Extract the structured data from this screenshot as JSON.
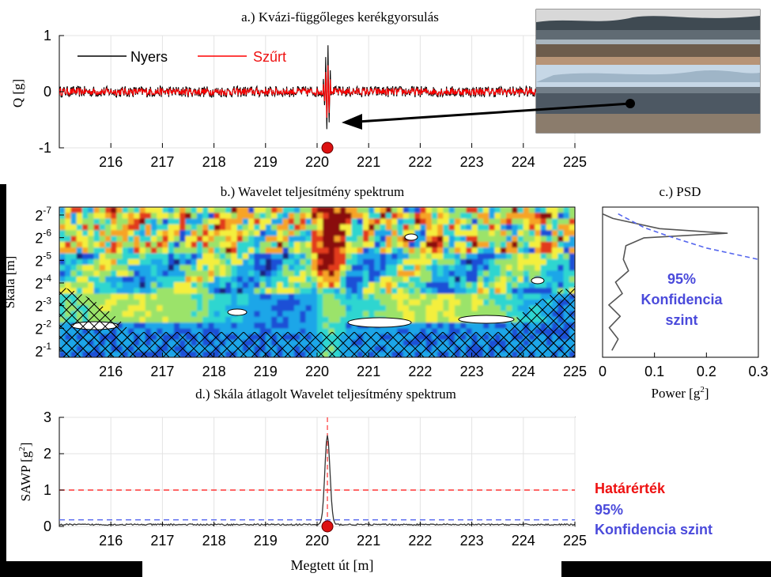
{
  "colors": {
    "raw": "#000000",
    "filtered": "#ff0000",
    "marker": "#dd1111",
    "threshold": "#ff3333",
    "confidence": "#5566ee",
    "confidence_text": "#4a4adb",
    "threshold_text": "#ee1111",
    "psd_line": "#555555"
  },
  "chart_data": [
    {
      "id": "a",
      "type": "line",
      "title": "a.) Kvázi-függőleges kerékgyorsulás",
      "ylabel": "Q [g]",
      "xlabel": "",
      "xlim": [
        215,
        225
      ],
      "ylim": [
        -1,
        1
      ],
      "x_ticks": [
        216,
        217,
        218,
        219,
        220,
        221,
        222,
        223,
        224,
        225
      ],
      "y_ticks": [
        1,
        0,
        -1
      ],
      "grid": true,
      "legend": {
        "position": "top-left",
        "entries": [
          "Nyers",
          "Szűrt"
        ]
      },
      "series": [
        {
          "name": "Nyers",
          "note": "noise about ±0.1 g, impact peak",
          "peak_x": 220.2,
          "peak_max": 0.95,
          "peak_min": -0.72,
          "noise_amplitude": 0.1
        },
        {
          "name": "Szűrt",
          "peak_x": 220.2,
          "peak_max": 0.55,
          "peak_min": -0.5
        }
      ],
      "marker": {
        "x": 220.2,
        "y": -1
      }
    },
    {
      "id": "b",
      "type": "heatmap",
      "title": "b.) Wavelet teljesítmény spektrum",
      "ylabel": "Skála [m]",
      "xlim": [
        215,
        225
      ],
      "x_ticks": [
        216,
        217,
        218,
        219,
        220,
        221,
        222,
        223,
        224,
        225
      ],
      "y_ticks": [
        "2-7",
        "2-6",
        "2-5",
        "2-4",
        "2-3",
        "2-2",
        "2-1"
      ],
      "y_ticks_display": [
        {
          "base": "2",
          "exp": "-7"
        },
        {
          "base": "2",
          "exp": "-6"
        },
        {
          "base": "2",
          "exp": "-5"
        },
        {
          "base": "2",
          "exp": "-4"
        },
        {
          "base": "2",
          "exp": "-3"
        },
        {
          "base": "2",
          "exp": "-2"
        },
        {
          "base": "2",
          "exp": "-1"
        }
      ],
      "hotspot_x": 220.2
    },
    {
      "id": "c",
      "type": "line",
      "title": "c.) PSD",
      "xlabel_base": "Power [g",
      "xlabel_exp": "2",
      "xlabel_end": "]",
      "xlim": [
        0,
        0.3
      ],
      "x_ticks": [
        "0",
        "0.1",
        "0.2",
        "0.3"
      ],
      "series": [
        {
          "name": "PSD",
          "points": [
            [
              0.0,
              -7.0
            ],
            [
              0.02,
              -6.8
            ],
            [
              0.11,
              -6.35
            ],
            [
              0.24,
              -6.15
            ],
            [
              0.08,
              -5.95
            ],
            [
              0.045,
              -5.6
            ],
            [
              0.04,
              -5.0
            ],
            [
              0.05,
              -4.5
            ],
            [
              0.025,
              -4.0
            ],
            [
              0.038,
              -3.5
            ],
            [
              0.012,
              -3.0
            ],
            [
              0.034,
              -2.5
            ],
            [
              0.013,
              -2.0
            ],
            [
              0.03,
              -1.5
            ],
            [
              0.018,
              -1.0
            ]
          ]
        },
        {
          "name": "95% Konfidencia szint",
          "points": [
            [
              0.03,
              -7.0
            ],
            [
              0.08,
              -6.4
            ],
            [
              0.13,
              -6.0
            ],
            [
              0.2,
              -5.5
            ],
            [
              0.3,
              -5.0
            ]
          ]
        }
      ],
      "annotation": [
        "95%",
        "Konfidencia",
        "szint"
      ]
    },
    {
      "id": "d",
      "type": "line",
      "title": "d.) Skála átlagolt Wavelet teljesítmény spektrum",
      "ylabel_base": "SAWP [g",
      "ylabel_exp": "2",
      "ylabel_end": "]",
      "xlabel": "Megtett út [m]",
      "xlim": [
        215,
        225
      ],
      "ylim": [
        0,
        3
      ],
      "x_ticks": [
        216,
        217,
        218,
        219,
        220,
        221,
        222,
        223,
        224,
        225
      ],
      "y_ticks": [
        3,
        2,
        1,
        0
      ],
      "grid": true,
      "series": [
        {
          "name": "SAWP",
          "peak_x": 220.2,
          "peak_y": 2.45,
          "baseline": 0.05
        }
      ],
      "threshold": {
        "label": "Határérték",
        "value": 1.0
      },
      "confidence": {
        "label_line1": "95%",
        "label_line2": "Konfidencia szint",
        "value": 0.18
      },
      "marker": {
        "x": 220.2,
        "y": 0
      }
    }
  ]
}
